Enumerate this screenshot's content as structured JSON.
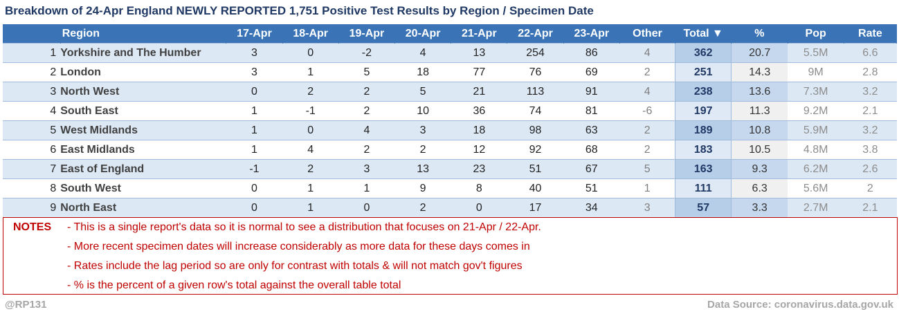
{
  "title": "Breakdown of 24-Apr England NEWLY REPORTED 1,751 Positive Test Results by Region / Specimen Date",
  "table": {
    "headers": [
      "",
      "Region",
      "17-Apr",
      "18-Apr",
      "19-Apr",
      "20-Apr",
      "21-Apr",
      "22-Apr",
      "23-Apr",
      "Other",
      "Total ▼",
      "%",
      "Pop",
      "Rate"
    ],
    "rows": [
      [
        "1",
        "Yorkshire and The Humber",
        "3",
        "0",
        "-2",
        "4",
        "13",
        "254",
        "86",
        "4",
        "362",
        "20.7",
        "5.5M",
        "6.6"
      ],
      [
        "2",
        "London",
        "3",
        "1",
        "5",
        "18",
        "77",
        "76",
        "69",
        "2",
        "251",
        "14.3",
        "9M",
        "2.8"
      ],
      [
        "3",
        "North West",
        "0",
        "2",
        "2",
        "5",
        "21",
        "113",
        "91",
        "4",
        "238",
        "13.6",
        "7.3M",
        "3.2"
      ],
      [
        "4",
        "South East",
        "1",
        "-1",
        "2",
        "10",
        "36",
        "74",
        "81",
        "-6",
        "197",
        "11.3",
        "9.2M",
        "2.1"
      ],
      [
        "5",
        "West Midlands",
        "1",
        "0",
        "4",
        "3",
        "18",
        "98",
        "63",
        "2",
        "189",
        "10.8",
        "5.9M",
        "3.2"
      ],
      [
        "6",
        "East Midlands",
        "1",
        "4",
        "2",
        "2",
        "12",
        "92",
        "68",
        "2",
        "183",
        "10.5",
        "4.8M",
        "3.8"
      ],
      [
        "7",
        "East of England",
        "-1",
        "2",
        "3",
        "13",
        "23",
        "51",
        "67",
        "5",
        "163",
        "9.3",
        "6.2M",
        "2.6"
      ],
      [
        "8",
        "South West",
        "0",
        "1",
        "1",
        "9",
        "8",
        "40",
        "51",
        "1",
        "111",
        "6.3",
        "5.6M",
        "2"
      ],
      [
        "9",
        "North East",
        "0",
        "1",
        "0",
        "2",
        "0",
        "17",
        "34",
        "3",
        "57",
        "3.3",
        "2.7M",
        "2.1"
      ]
    ]
  },
  "notes": {
    "label": "NOTES",
    "lines": [
      "- This is a single report's data so it is normal to see a distribution that focuses on 21-Apr / 22-Apr.",
      "- More recent specimen dates will increase considerably as more data for these days comes in",
      "- Rates include the lag period so are only for contrast with totals & will not match gov't figures",
      "- % is the percent of a given row's total against the overall table total"
    ]
  },
  "footer": {
    "handle": "@RP131",
    "source": "Data Source: coronavirus.data.gov.uk"
  },
  "colors": {
    "header_bg": "#3a74b7",
    "title": "#1f3864",
    "notes": "#c00000",
    "band": "#dde8f5"
  }
}
